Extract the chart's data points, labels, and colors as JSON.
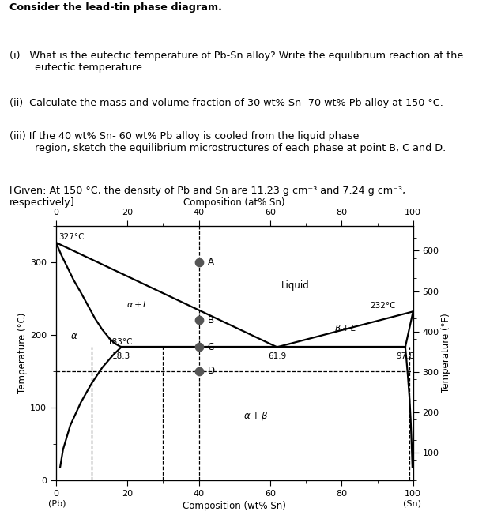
{
  "title_text": "Consider the lead-tin phase diagram.",
  "q1": "(i)   What is the eutectic temperature of Pb-Sn alloy? Write the equilibrium reaction at the\n        eutectic temperature.",
  "q2": "(ii)  Calculate the mass and volume fraction of 30 wt% Sn- 70 wt% Pb alloy at 150 °C.",
  "q3": "(iii) If the 40 wt% Sn- 60 wt% Pb alloy is cooled from the liquid phase\n        region, sketch the equilibrium microstructures of each phase at point B, C and D.",
  "q4": "[Given: At 150 °C, the density of Pb and Sn are 11.23 g cm⁻³ and 7.24 g cm⁻³,\nrespectively].",
  "xlabel_bottom": "Composition (wt% Sn)",
  "xlabel_top": "Composition (at% Sn)",
  "ylabel_left": "Temperature (°C)",
  "ylabel_right": "Temperature (°F)",
  "pb_label": "(Pb)",
  "sn_label": "(Sn)",
  "bg_color": "#ffffff",
  "point_color": "#555555",
  "lw": 1.6
}
